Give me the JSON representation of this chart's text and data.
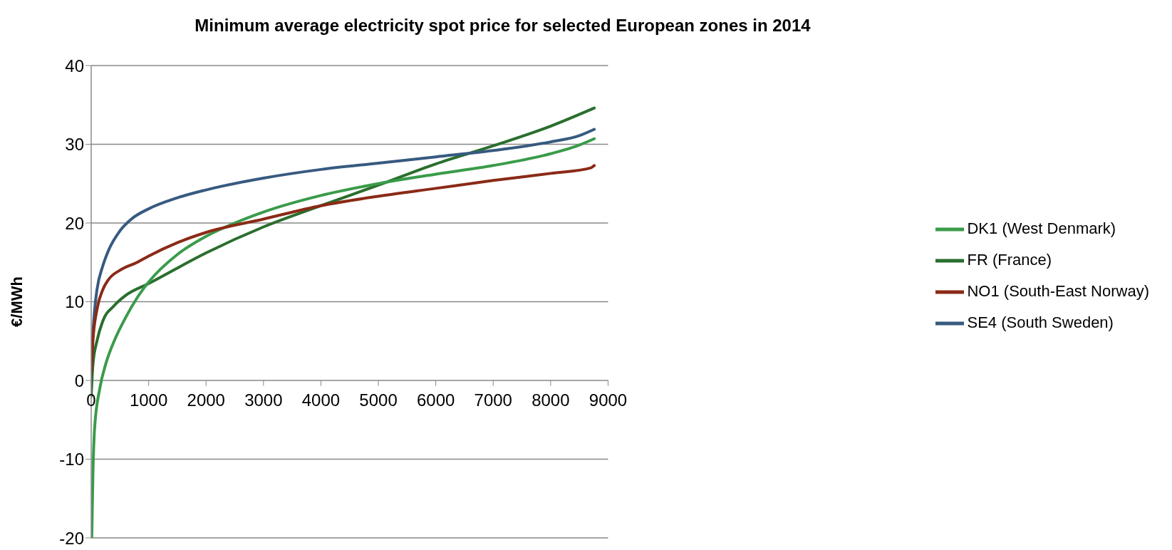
{
  "chart_data": {
    "type": "line",
    "title": "Minimum average electricity spot price for selected European zones in 2014",
    "ylabel": "€/MWh",
    "xlim": [
      0,
      9000
    ],
    "xticks": [
      0,
      1000,
      2000,
      3000,
      4000,
      5000,
      6000,
      7000,
      8000,
      9000
    ],
    "ylim": [
      -20,
      40
    ],
    "yticks": [
      -20,
      -10,
      0,
      10,
      20,
      30,
      40
    ],
    "grid": "y",
    "legend": "right",
    "marker": "none",
    "line_style": "solid",
    "series": [
      {
        "name": "FR (France)",
        "color": "#2a6e2e",
        "x": [
          0,
          30,
          100,
          200,
          400,
          600,
          1000,
          2000,
          3000,
          4000,
          5000,
          6000,
          7000,
          8000,
          8760
        ],
        "values": [
          -2,
          2,
          5,
          7.5,
          9.5,
          10.8,
          12.3,
          16.2,
          19.5,
          22.2,
          24.8,
          27.5,
          29.8,
          32.3,
          34.6
        ]
      },
      {
        "name": "DK1 (West Denmark)",
        "color": "#3a9b4a",
        "x": [
          10,
          30,
          60,
          150,
          250,
          400,
          600,
          800,
          1000,
          1500,
          2000,
          2500,
          3000,
          4000,
          5000,
          6000,
          7000,
          8000,
          8500,
          8760
        ],
        "values": [
          -20,
          -12,
          -6,
          -1,
          2,
          5,
          8,
          10.5,
          12.5,
          16,
          18.3,
          20,
          21.4,
          23.5,
          25,
          26.2,
          27.3,
          28.8,
          29.9,
          30.7
        ]
      },
      {
        "name": "SE4 (South Sweden)",
        "color": "#375a80",
        "x": [
          0,
          30,
          60,
          100,
          200,
          300,
          500,
          700,
          1000,
          1500,
          2000,
          3000,
          4000,
          5000,
          6000,
          7000,
          8000,
          8500,
          8760
        ],
        "values": [
          2,
          6,
          9,
          11.5,
          14.5,
          16.5,
          19,
          20.5,
          21.8,
          23.2,
          24.2,
          25.7,
          26.8,
          27.6,
          28.4,
          29.2,
          30.3,
          31.1,
          31.9
        ]
      },
      {
        "name": "NO1 (South-East Norway)",
        "color": "#8b2a17",
        "x": [
          0,
          30,
          100,
          200,
          300,
          500,
          800,
          1000,
          1500,
          2000,
          3000,
          4000,
          5000,
          6000,
          7000,
          8000,
          8700,
          8760
        ],
        "values": [
          1,
          5,
          9,
          11.5,
          12.8,
          14,
          15,
          15.8,
          17.5,
          18.8,
          20.5,
          22.2,
          23.4,
          24.4,
          25.4,
          26.3,
          27,
          27.3
        ]
      }
    ]
  }
}
